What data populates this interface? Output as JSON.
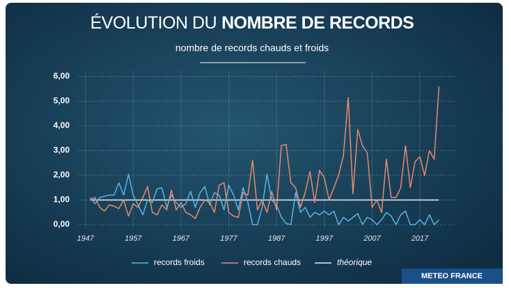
{
  "chart_data": {
    "type": "line",
    "title": [
      "ÉVOLUTION DU",
      "NOMBRE DE RECORDS"
    ],
    "subtitle": "nombre de records chauds et froids",
    "x": [
      1948,
      1949,
      1950,
      1951,
      1952,
      1953,
      1954,
      1955,
      1956,
      1957,
      1958,
      1959,
      1960,
      1961,
      1962,
      1963,
      1964,
      1965,
      1966,
      1967,
      1968,
      1969,
      1970,
      1971,
      1972,
      1973,
      1974,
      1975,
      1976,
      1977,
      1978,
      1979,
      1980,
      1981,
      1982,
      1983,
      1984,
      1985,
      1986,
      1987,
      1988,
      1989,
      1990,
      1991,
      1992,
      1993,
      1994,
      1995,
      1996,
      1997,
      1998,
      1999,
      2000,
      2001,
      2002,
      2003,
      2004,
      2005,
      2006,
      2007,
      2008,
      2009,
      2010,
      2011,
      2012,
      2013,
      2014,
      2015,
      2016,
      2017,
      2018,
      2019,
      2020,
      2021
    ],
    "series": [
      {
        "name": "records froids",
        "color": "#5ab4e5",
        "values": [
          1.1,
          0.85,
          1.1,
          1.15,
          1.2,
          1.2,
          1.7,
          1.2,
          2.05,
          1.2,
          0.8,
          0.4,
          1.0,
          0.9,
          1.45,
          1.5,
          0.7,
          1.2,
          0.9,
          0.7,
          0.85,
          1.35,
          0.7,
          1.3,
          1.55,
          0.8,
          1.3,
          1.2,
          0.6,
          1.6,
          1.2,
          0.6,
          1.5,
          0.9,
          0,
          0,
          0.7,
          2.05,
          1.0,
          0.8,
          0.3,
          0.05,
          0,
          1.3,
          0.5,
          0.7,
          0.3,
          0.5,
          0.4,
          0.55,
          0.4,
          0.55,
          0,
          0.3,
          0.15,
          0.3,
          0.45,
          0,
          0.3,
          0.2,
          0,
          0.2,
          0.5,
          0.35,
          0,
          0.4,
          0.55,
          0,
          0,
          0.2,
          0,
          0.4,
          0,
          0.2
        ]
      },
      {
        "name": "records chauds",
        "color": "#e98a6e",
        "values": [
          1.0,
          1.1,
          0.7,
          0.55,
          0.8,
          0.75,
          0.65,
          1.0,
          0.35,
          0.85,
          0.7,
          1.1,
          1.55,
          0.5,
          0.4,
          0.8,
          0.6,
          1.4,
          0.6,
          0.9,
          0.5,
          0.4,
          0.25,
          0.7,
          1.0,
          0.9,
          0.5,
          1.6,
          1.7,
          0.5,
          0.35,
          0.3,
          1.3,
          1.2,
          2.6,
          0.6,
          1.0,
          0.5,
          1.35,
          0.6,
          3.2,
          3.25,
          1.7,
          1.5,
          0.7,
          1.3,
          2.15,
          0.9,
          2.2,
          1.9,
          1.0,
          1.5,
          2.0,
          2.8,
          5.15,
          1.25,
          3.85,
          3.2,
          2.9,
          0.7,
          1.0,
          0.5,
          2.65,
          1.1,
          1.1,
          1.5,
          3.2,
          1.5,
          2.55,
          2.75,
          2.0,
          3.0,
          2.65,
          5.6
        ]
      }
    ],
    "theoretical": {
      "name": "théorique",
      "color": "#e8f0f5",
      "value": 1
    },
    "xlim": [
      1945,
      2024
    ],
    "xticks": [
      1947,
      1957,
      1967,
      1977,
      1987,
      1997,
      2007,
      2017
    ],
    "ylim": [
      0,
      6
    ],
    "yticks": [
      {
        "value": 0,
        "label": "0,00"
      },
      {
        "value": 1,
        "label": "1,00"
      },
      {
        "value": 2,
        "label": "2,00"
      },
      {
        "value": 3,
        "label": "3,00"
      },
      {
        "value": 4,
        "label": "4,00"
      },
      {
        "value": 5,
        "label": "5,00"
      },
      {
        "value": 6,
        "label": "6,00"
      }
    ],
    "grid": true,
    "source": "METEO FRANCE"
  }
}
